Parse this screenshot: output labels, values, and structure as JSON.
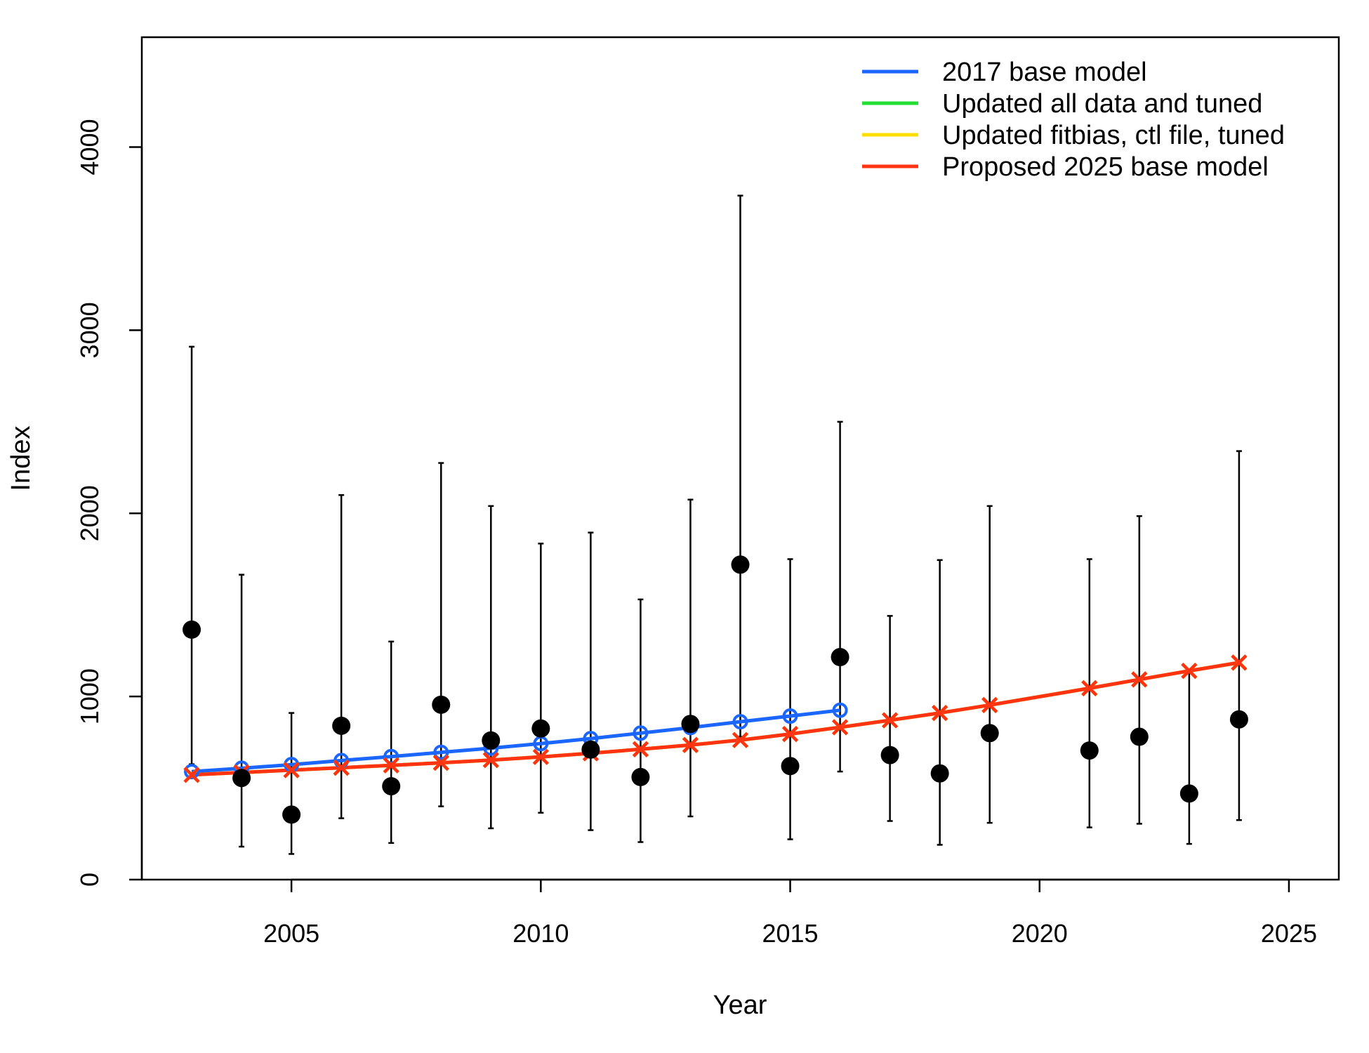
{
  "chart_data": {
    "type": "line",
    "xlabel": "Year",
    "ylabel": "Index",
    "xlim": [
      2002,
      2026
    ],
    "ylim": [
      0,
      4600
    ],
    "x_ticks": [
      2005,
      2010,
      2015,
      2020,
      2025
    ],
    "y_ticks": [
      0,
      1000,
      2000,
      3000,
      4000
    ],
    "grid": false,
    "legend_position": "top-right",
    "observed": {
      "color": "#000000",
      "points": [
        {
          "x": 2003,
          "y": 1365,
          "lo": 630,
          "hi": 2910
        },
        {
          "x": 2004,
          "y": 555,
          "lo": 180,
          "hi": 1665
        },
        {
          "x": 2005,
          "y": 355,
          "lo": 140,
          "hi": 910
        },
        {
          "x": 2006,
          "y": 840,
          "lo": 335,
          "hi": 2100
        },
        {
          "x": 2007,
          "y": 510,
          "lo": 200,
          "hi": 1300
        },
        {
          "x": 2008,
          "y": 955,
          "lo": 400,
          "hi": 2275
        },
        {
          "x": 2009,
          "y": 760,
          "lo": 280,
          "hi": 2040
        },
        {
          "x": 2010,
          "y": 825,
          "lo": 365,
          "hi": 1835
        },
        {
          "x": 2011,
          "y": 710,
          "lo": 270,
          "hi": 1895
        },
        {
          "x": 2012,
          "y": 560,
          "lo": 205,
          "hi": 1530
        },
        {
          "x": 2013,
          "y": 850,
          "lo": 345,
          "hi": 2075
        },
        {
          "x": 2014,
          "y": 1720,
          "lo": 780,
          "hi": 3735
        },
        {
          "x": 2015,
          "y": 620,
          "lo": 220,
          "hi": 1750
        },
        {
          "x": 2016,
          "y": 1215,
          "lo": 590,
          "hi": 2500
        },
        {
          "x": 2017,
          "y": 680,
          "lo": 320,
          "hi": 1440
        },
        {
          "x": 2018,
          "y": 580,
          "lo": 190,
          "hi": 1745
        },
        {
          "x": 2019,
          "y": 800,
          "lo": 310,
          "hi": 2040
        },
        {
          "x": 2021,
          "y": 705,
          "lo": 285,
          "hi": 1750
        },
        {
          "x": 2022,
          "y": 780,
          "lo": 305,
          "hi": 1985
        },
        {
          "x": 2023,
          "y": 470,
          "lo": 195,
          "hi": 1140
        },
        {
          "x": 2024,
          "y": 875,
          "lo": 325,
          "hi": 2340
        }
      ]
    },
    "series": [
      {
        "name": "2017 base model",
        "color": "#1a66ff",
        "marker": "circle",
        "points": [
          [
            2003,
            590
          ],
          [
            2004,
            608
          ],
          [
            2005,
            628
          ],
          [
            2006,
            650
          ],
          [
            2007,
            672
          ],
          [
            2008,
            695
          ],
          [
            2009,
            718
          ],
          [
            2010,
            743
          ],
          [
            2011,
            770
          ],
          [
            2012,
            800
          ],
          [
            2013,
            830
          ],
          [
            2014,
            862
          ],
          [
            2015,
            893
          ],
          [
            2016,
            925
          ]
        ]
      },
      {
        "name": "Updated all data and tuned",
        "color": "#22dd33",
        "marker": "cross",
        "points": [
          [
            2003,
            572
          ],
          [
            2004,
            585
          ],
          [
            2005,
            598
          ],
          [
            2006,
            611
          ],
          [
            2007,
            624
          ],
          [
            2008,
            638
          ],
          [
            2009,
            653
          ],
          [
            2010,
            670
          ],
          [
            2011,
            690
          ],
          [
            2012,
            712
          ],
          [
            2013,
            735
          ],
          [
            2014,
            762
          ],
          [
            2015,
            795
          ],
          [
            2016,
            832
          ],
          [
            2017,
            870
          ],
          [
            2018,
            910
          ],
          [
            2019,
            953
          ],
          [
            2021,
            1045
          ],
          [
            2022,
            1093
          ],
          [
            2023,
            1140
          ],
          [
            2024,
            1185
          ]
        ]
      },
      {
        "name": "Updated fitbias, ctl file, tuned",
        "color": "#ffdd00",
        "marker": "cross",
        "points": [
          [
            2003,
            572
          ],
          [
            2004,
            585
          ],
          [
            2005,
            598
          ],
          [
            2006,
            611
          ],
          [
            2007,
            624
          ],
          [
            2008,
            638
          ],
          [
            2009,
            653
          ],
          [
            2010,
            670
          ],
          [
            2011,
            690
          ],
          [
            2012,
            712
          ],
          [
            2013,
            735
          ],
          [
            2014,
            762
          ],
          [
            2015,
            795
          ],
          [
            2016,
            832
          ],
          [
            2017,
            870
          ],
          [
            2018,
            910
          ],
          [
            2019,
            953
          ],
          [
            2021,
            1045
          ],
          [
            2022,
            1093
          ],
          [
            2023,
            1140
          ],
          [
            2024,
            1185
          ]
        ]
      },
      {
        "name": "Proposed 2025 base model",
        "color": "#ff3311",
        "marker": "cross",
        "points": [
          [
            2003,
            572
          ],
          [
            2004,
            585
          ],
          [
            2005,
            598
          ],
          [
            2006,
            611
          ],
          [
            2007,
            624
          ],
          [
            2008,
            638
          ],
          [
            2009,
            653
          ],
          [
            2010,
            670
          ],
          [
            2011,
            690
          ],
          [
            2012,
            712
          ],
          [
            2013,
            735
          ],
          [
            2014,
            762
          ],
          [
            2015,
            795
          ],
          [
            2016,
            832
          ],
          [
            2017,
            870
          ],
          [
            2018,
            910
          ],
          [
            2019,
            953
          ],
          [
            2021,
            1045
          ],
          [
            2022,
            1093
          ],
          [
            2023,
            1140
          ],
          [
            2024,
            1185
          ]
        ]
      }
    ]
  }
}
